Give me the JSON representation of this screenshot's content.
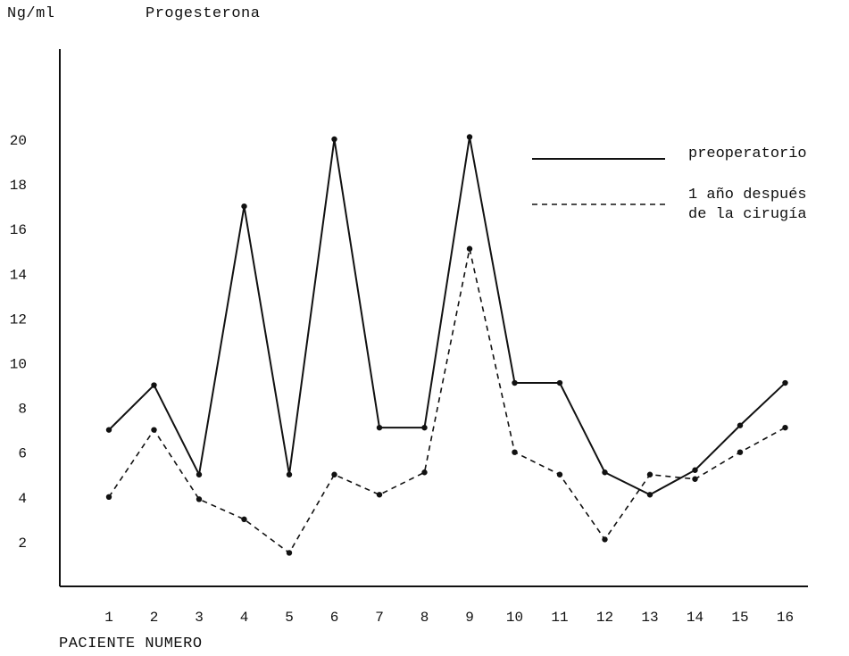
{
  "chart_data": {
    "type": "line",
    "title": "Progesterona",
    "ylabel": "Ng/ml",
    "xlabel": "PACIENTE NUMERO",
    "x": [
      1,
      2,
      3,
      4,
      5,
      6,
      7,
      8,
      9,
      10,
      11,
      12,
      13,
      14,
      15,
      16
    ],
    "y_ticks": [
      2,
      4,
      6,
      8,
      10,
      12,
      14,
      16,
      18,
      20
    ],
    "ylim": [
      0,
      24
    ],
    "xlim": [
      0,
      16.6
    ],
    "grid": false,
    "legend_position": "top-right",
    "series": [
      {
        "name": "preoperatorio",
        "style": "solid",
        "color": "#111111",
        "values": [
          7,
          9,
          5,
          17,
          5,
          20,
          7.1,
          7.1,
          20.1,
          9.1,
          9.1,
          5.1,
          4.1,
          5.2,
          7.2,
          9.1
        ]
      },
      {
        "name": "1 año después\nde la cirugía",
        "style": "dashed",
        "color": "#111111",
        "values": [
          4,
          7,
          3.9,
          3,
          1.5,
          5,
          4.1,
          5.1,
          15.1,
          6,
          5,
          2.1,
          5,
          4.8,
          6,
          7.1
        ]
      }
    ]
  }
}
